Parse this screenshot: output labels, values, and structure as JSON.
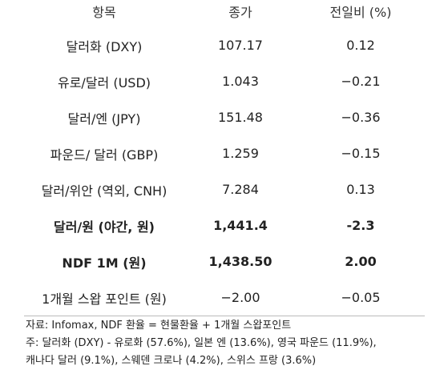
{
  "table": {
    "header": [
      "항목",
      "종가",
      "전일비 (%)"
    ],
    "rows": [
      [
        "달러화 (DXY)",
        "107.17",
        "0.12"
      ],
      [
        "유로/달러 (USD)",
        "1.043",
        "−0.21"
      ],
      [
        "달러/엔 (JPY)",
        "151.48",
        "−0.36"
      ],
      [
        "파운드/ 달러 (GBP)",
        "1.259",
        "−0.15"
      ],
      [
        "달러/위안 (역외, CNH)",
        "7.284",
        "0.13"
      ],
      [
        "달러/원 (야간, 원)",
        "1,441.4",
        "-2.3"
      ],
      [
        "NDF 1M (원)",
        "1,438.50",
        "2.00"
      ],
      [
        "1개월 스왑 포인트 (원)",
        "−2.00",
        "−0.05"
      ]
    ]
  },
  "notes": [
    "자료: Infomax, NDF 환율 = 현물환율 + 1개월 스왑포인트",
    "주: 달러화 (DXY) - 유로화 (57.6%), 일본 엔 (13.6%), 영국 파운드 (11.9%),",
    "캐나다 달러 (9.1%), 스웨덴 크로나 (4.2%), 스위스 프랑 (3.6%)"
  ]
}
